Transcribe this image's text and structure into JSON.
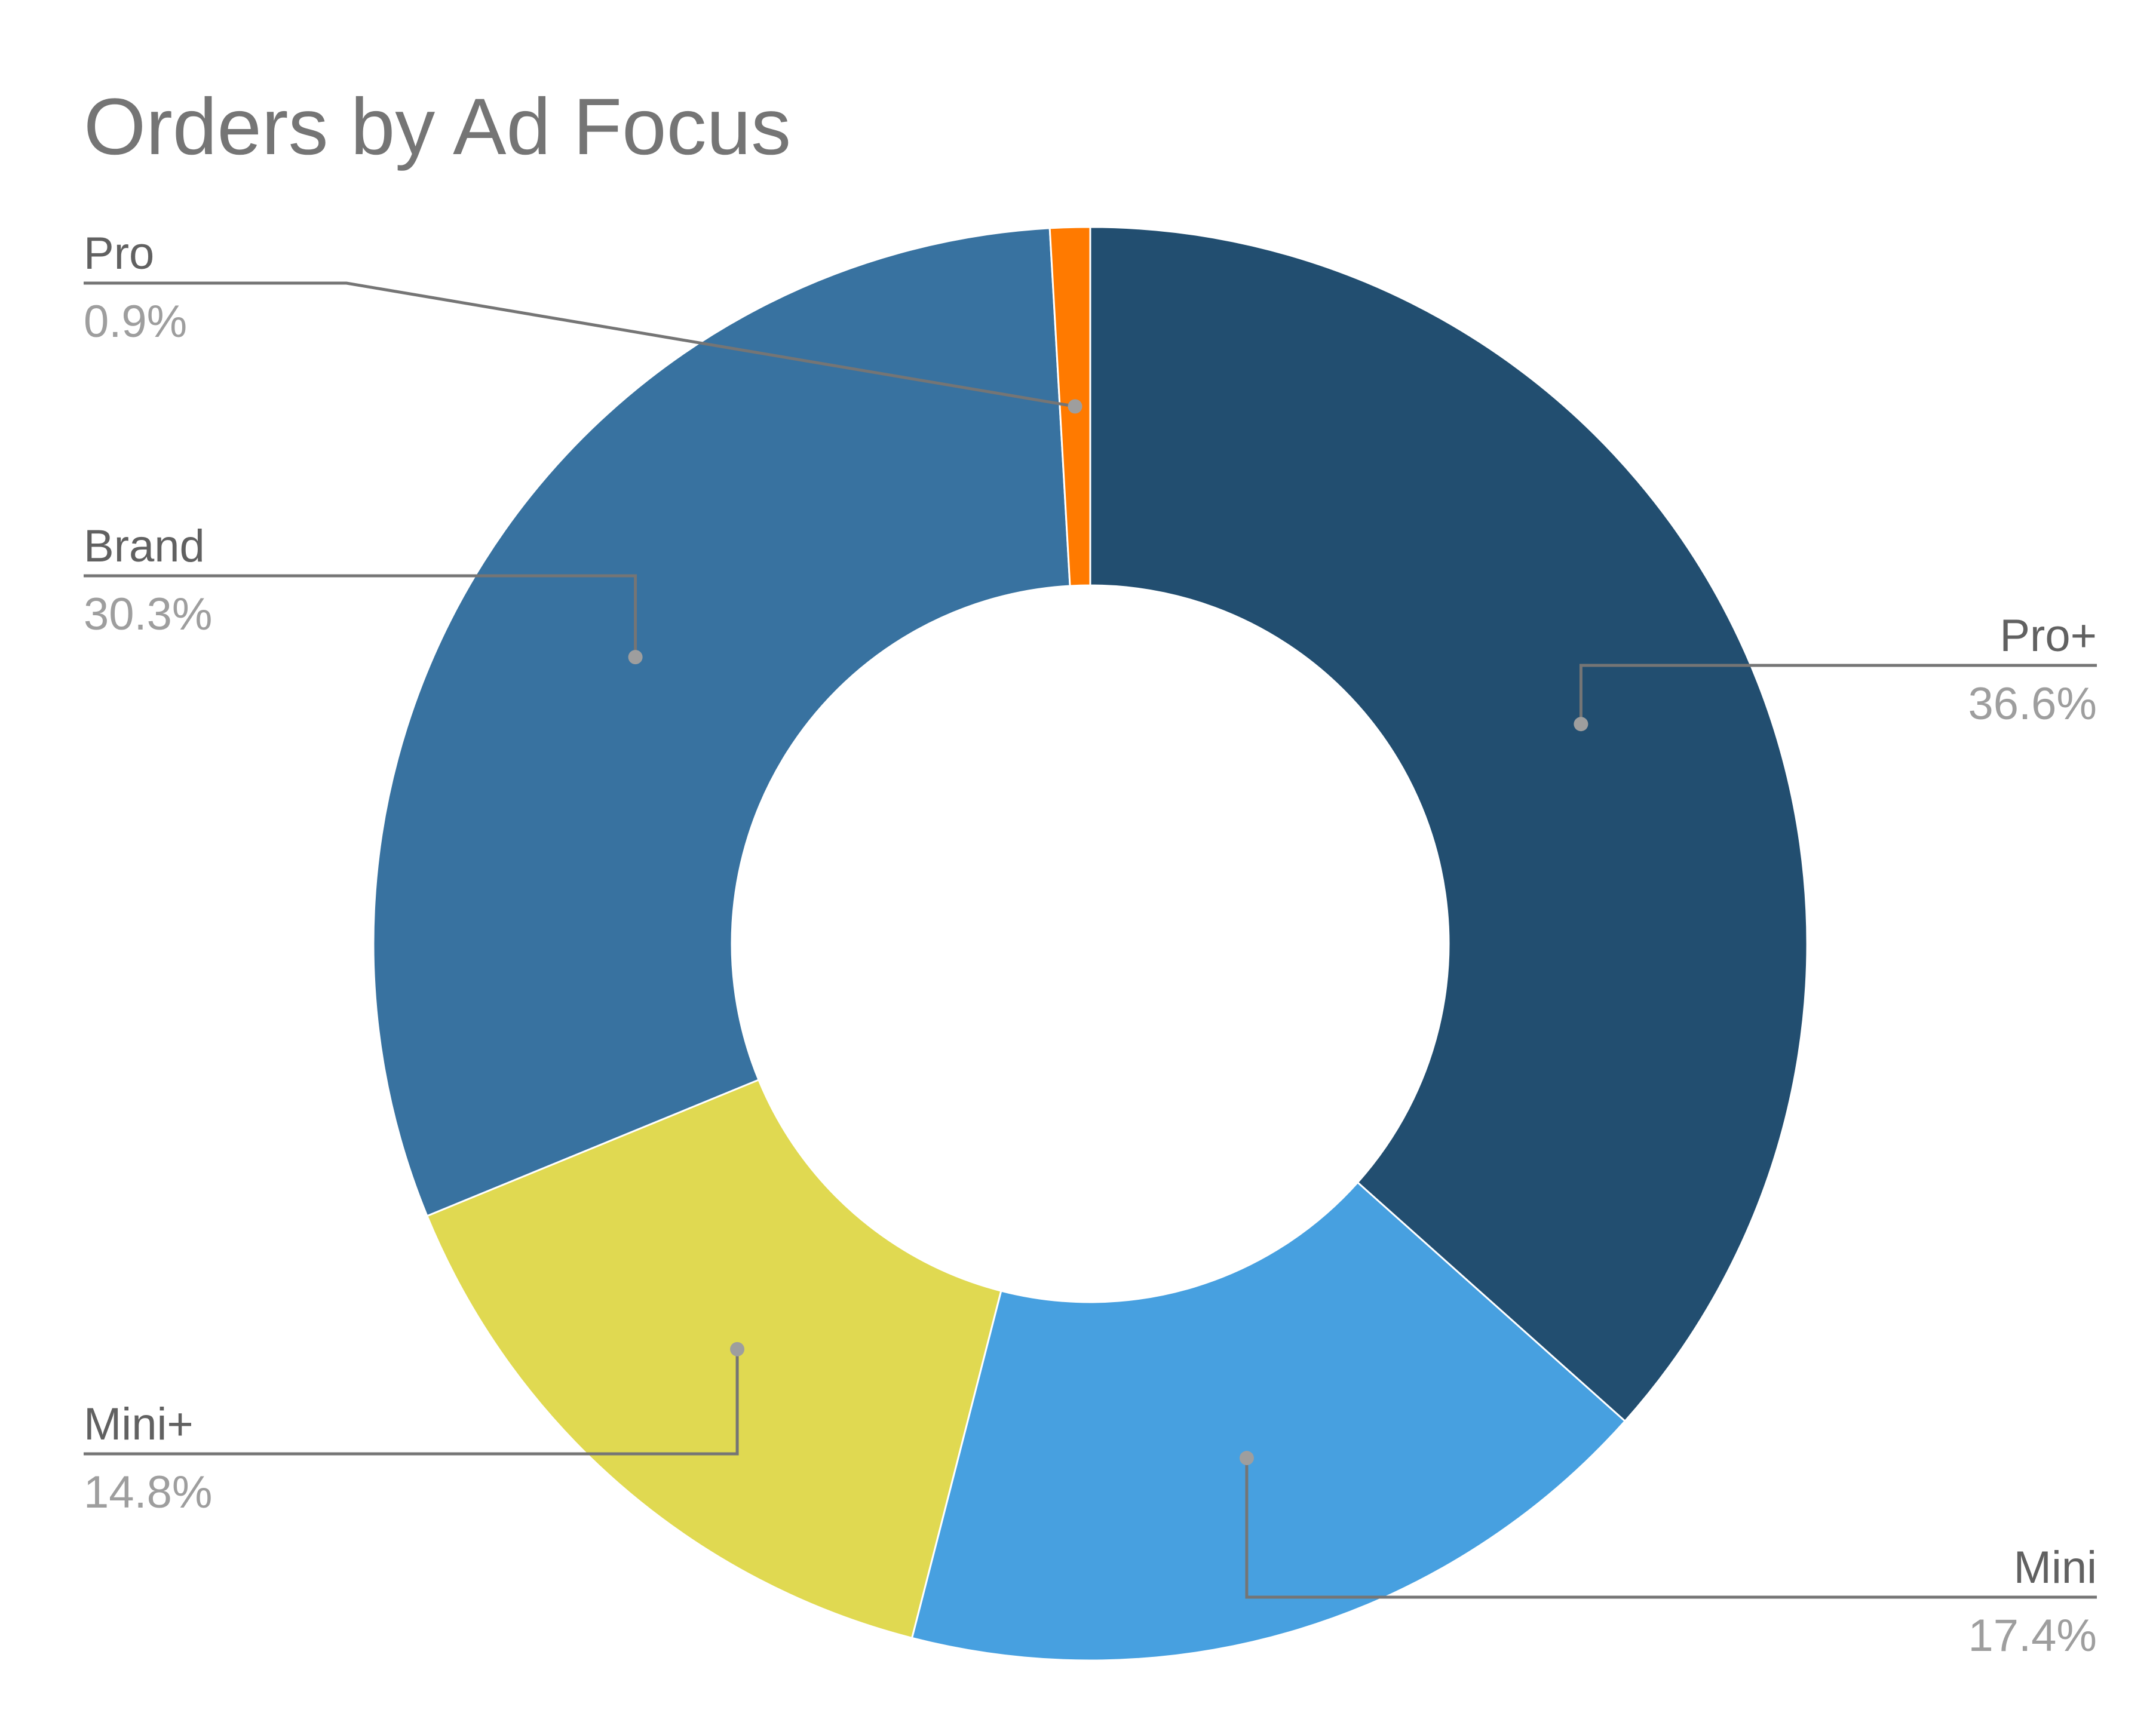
{
  "chart_data": {
    "type": "pie",
    "title": "Orders by Ad Focus",
    "donut": true,
    "legend": "none",
    "slices": [
      {
        "label": "Pro+",
        "value": 36.6,
        "display": "36.6%",
        "color": "#224e70"
      },
      {
        "label": "Mini",
        "value": 17.4,
        "display": "17.4%",
        "color": "#47a0e0"
      },
      {
        "label": "Mini+",
        "value": 14.8,
        "display": "14.8%",
        "color": "#e0d951"
      },
      {
        "label": "Brand",
        "value": 30.3,
        "display": "30.3%",
        "color": "#3872a0"
      },
      {
        "label": "Pro",
        "value": 0.9,
        "display": "0.9%",
        "color": "#ff7a00"
      }
    ]
  }
}
